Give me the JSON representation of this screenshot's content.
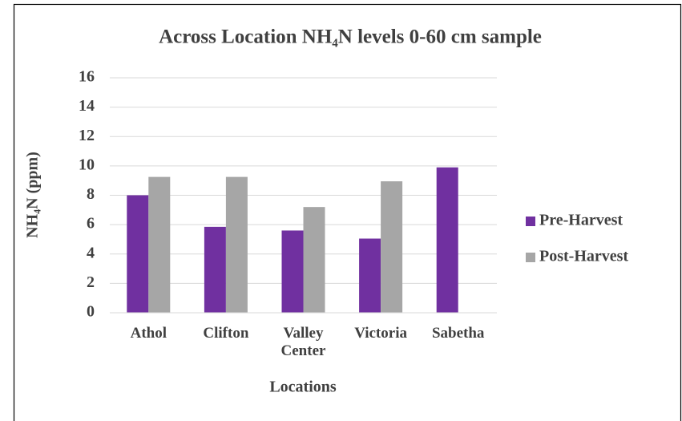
{
  "chart_data": {
    "type": "bar",
    "title": "Across Location NH₄N levels 0-60 cm sample",
    "x_label": "Locations",
    "y_label": "NH₄N (ppm)",
    "categories": [
      "Athol",
      "Clifton",
      "Valley Center",
      "Victoria",
      "Sabetha"
    ],
    "series": [
      {
        "name": "Pre-Harvest",
        "color": "#7030a0",
        "values": [
          8.0,
          5.85,
          5.6,
          5.05,
          9.9
        ]
      },
      {
        "name": "Post-Harvest",
        "color": "#a6a6a6",
        "values": [
          9.25,
          9.25,
          7.2,
          8.95,
          null
        ]
      }
    ],
    "ylim": [
      0,
      16
    ],
    "yticks": [
      0,
      2,
      4,
      6,
      8,
      10,
      12,
      14,
      16
    ],
    "grid": true,
    "legend": "right"
  }
}
